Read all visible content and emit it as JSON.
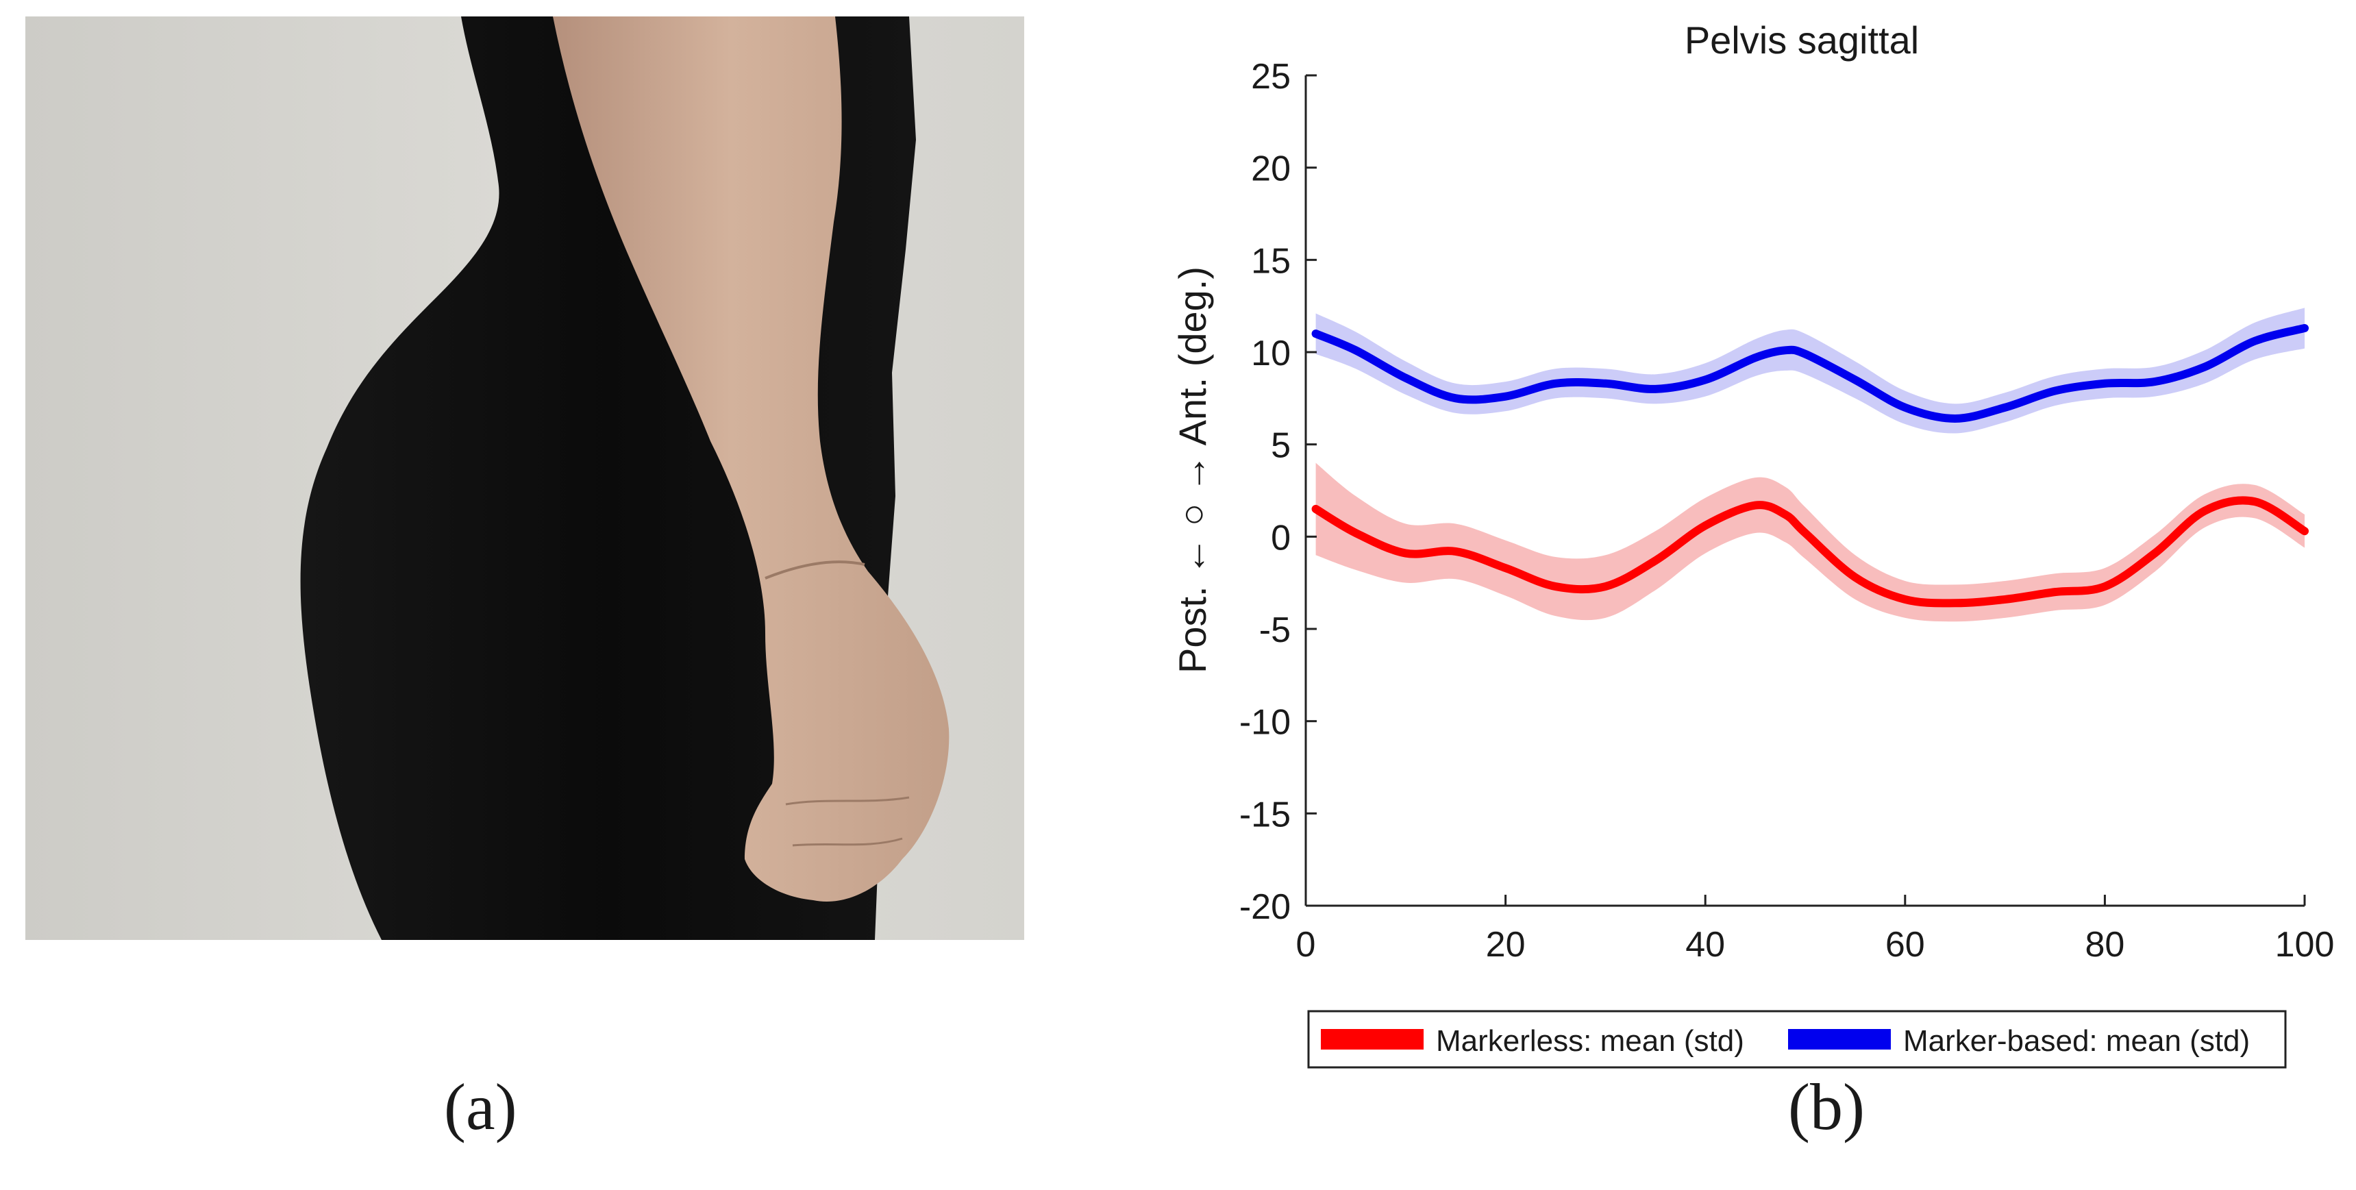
{
  "panel_a": {
    "caption": "(a)"
  },
  "panel_b": {
    "caption": "(b)"
  },
  "chart_data": {
    "type": "line",
    "title": "Pelvis sagittal",
    "xlabel": "",
    "ylabel": "Post. ← ○ → Ant. (deg.)",
    "xlim": [
      0,
      100
    ],
    "ylim": [
      -20,
      25
    ],
    "xticks": [
      0,
      20,
      40,
      60,
      80,
      100
    ],
    "yticks": [
      25,
      20,
      15,
      10,
      5,
      0,
      -5,
      -10,
      -15,
      -20
    ],
    "grid": false,
    "legend_position": "bottom",
    "x": [
      1,
      5,
      10,
      15,
      20,
      25,
      30,
      35,
      40,
      45,
      48,
      50,
      55,
      60,
      65,
      70,
      75,
      80,
      85,
      90,
      95,
      100
    ],
    "series": [
      {
        "name": "Markerless: mean (std)",
        "color": "#ff0000",
        "band_color": "#f7b6b6",
        "mean": [
          1.5,
          0.2,
          -0.9,
          -0.8,
          -1.7,
          -2.7,
          -2.7,
          -1.3,
          0.6,
          1.7,
          1.2,
          0.2,
          -2.2,
          -3.4,
          -3.6,
          -3.4,
          -3.0,
          -2.7,
          -0.9,
          1.4,
          1.9,
          0.3
        ],
        "std": [
          2.5,
          2.0,
          1.6,
          1.5,
          1.5,
          1.6,
          1.7,
          1.6,
          1.5,
          1.5,
          1.5,
          1.4,
          1.2,
          1.0,
          1.0,
          1.0,
          1.0,
          1.0,
          1.0,
          0.9,
          0.9,
          0.9
        ]
      },
      {
        "name": "Marker-based: mean (std)",
        "color": "#0000ee",
        "band_color": "#c7c7f7",
        "mean": [
          11.0,
          10.1,
          8.6,
          7.5,
          7.6,
          8.3,
          8.3,
          8.0,
          8.5,
          9.7,
          10.1,
          9.9,
          8.5,
          7.0,
          6.4,
          7.0,
          7.9,
          8.3,
          8.4,
          9.2,
          10.6,
          11.3
        ],
        "std": [
          1.1,
          1.0,
          0.9,
          0.8,
          0.8,
          0.8,
          0.8,
          0.8,
          0.9,
          1.0,
          1.1,
          1.1,
          1.0,
          0.9,
          0.8,
          0.8,
          0.8,
          0.8,
          0.8,
          0.9,
          1.0,
          1.1
        ]
      }
    ]
  }
}
